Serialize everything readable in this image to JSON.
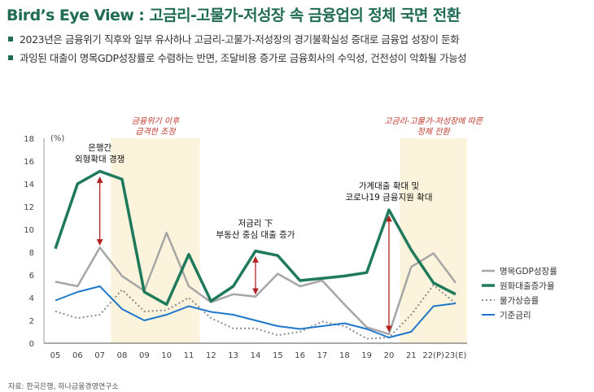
{
  "header": {
    "title": "Bird’s Eye View : 고금리-고물가-저성장 속 금융업의 정체 국면 전환",
    "bullets": [
      "2023년은 금융위기 직후와 일부 유사하나 고금리-고물가-저성장의 경기불확실성 증대로 금융업 성장이 둔화",
      "과잉된 대출이 명목GDP성장률로 수렴하는 반면, 조달비용 증가로 금융회사의 수익성, 건전성이 악화될 가능성"
    ]
  },
  "source": "자료: 한국은행, 하나금융경영연구소",
  "colors": {
    "gdp": "#a6a6a6",
    "loan": "#1e7a5a",
    "cpi": "#8c8c8c",
    "rate": "#1f77c9",
    "shade": "#fbf3dc",
    "arrow": "#b22222"
  },
  "chart_data": {
    "type": "line",
    "x": [
      "05",
      "06",
      "07",
      "08",
      "09",
      "10",
      "11",
      "12",
      "13",
      "14",
      "15",
      "16",
      "17",
      "18",
      "19",
      "20",
      "21",
      "22(P)",
      "23(E)"
    ],
    "yunit": "(%)",
    "ylim": [
      0,
      18
    ],
    "yticks": [
      0,
      2,
      4,
      6,
      8,
      10,
      12,
      14,
      16,
      18
    ],
    "grid": false,
    "legend_position": "right",
    "series": [
      {
        "key": "gdp",
        "name": "명목GDP성장률",
        "values": [
          5.4,
          5.0,
          8.4,
          5.9,
          4.6,
          9.7,
          5.0,
          3.6,
          4.3,
          4.1,
          6.1,
          5.0,
          5.5,
          3.4,
          1.4,
          0.8,
          6.7,
          7.9,
          5.3
        ]
      },
      {
        "key": "loan",
        "name": "원화대출증가율",
        "values": [
          8.3,
          14.0,
          15.1,
          14.4,
          4.5,
          3.4,
          7.8,
          3.7,
          5.0,
          8.1,
          7.7,
          5.5,
          5.7,
          5.9,
          6.2,
          11.7,
          8.2,
          5.3,
          4.3
        ]
      },
      {
        "key": "cpi",
        "name": "물가상승률",
        "values": [
          2.8,
          2.2,
          2.5,
          4.7,
          2.8,
          2.9,
          4.0,
          2.2,
          1.3,
          1.3,
          0.7,
          1.0,
          1.9,
          1.5,
          0.4,
          0.5,
          2.5,
          5.1,
          3.5
        ]
      },
      {
        "key": "rate",
        "name": "기준금리",
        "values": [
          3.75,
          4.5,
          5.0,
          3.0,
          2.0,
          2.5,
          3.25,
          2.75,
          2.5,
          2.0,
          1.5,
          1.25,
          1.5,
          1.75,
          1.25,
          0.5,
          1.0,
          3.25,
          3.5
        ]
      }
    ],
    "shaded_regions": [
      {
        "from": "08",
        "to": "11",
        "label_lines": [
          "금융위기 이후",
          "급격한 조정"
        ]
      },
      {
        "from": "21",
        "to": "23(E)",
        "label_lines": [
          "고금리-고물가-저성장에 따른",
          "정체 전환"
        ]
      }
    ],
    "annotations": [
      {
        "x": "07",
        "lines": [
          "은행간",
          "외형확대 경쟁"
        ],
        "arrow_from": 15.1,
        "arrow_to": 8.4
      },
      {
        "x": "14",
        "lines": [
          "저금리 下",
          "부동산 중심 대출 증가"
        ],
        "arrow_from": 8.1,
        "arrow_to": 4.1
      },
      {
        "x": "20",
        "lines": [
          "가계대출 확대 및",
          "코로나19 금융지원 확대"
        ],
        "arrow_from": 11.7,
        "arrow_to": 0.8
      }
    ]
  }
}
